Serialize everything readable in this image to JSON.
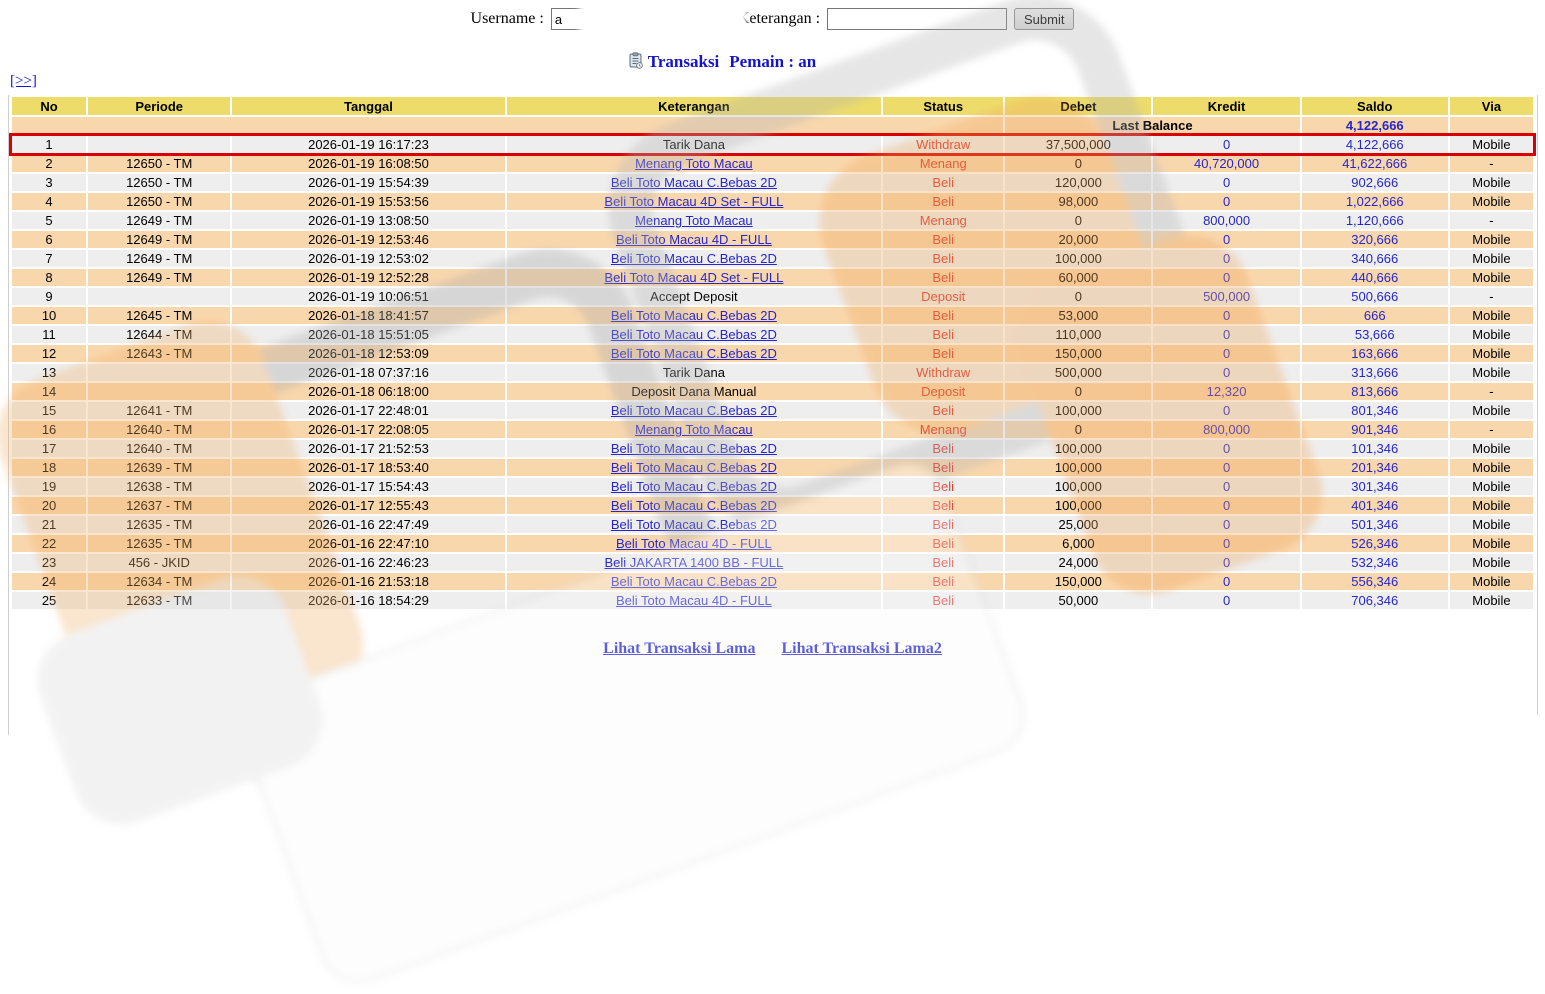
{
  "form": {
    "username_label": "Username :",
    "username_value": "a",
    "keterangan_label": "Keterangan :",
    "keterangan_value": "",
    "submit_label": "Submit"
  },
  "title": {
    "icon": "transaction-note-icon",
    "text": "Transaksi",
    "player_label": "Pemain : an"
  },
  "nav": {
    "more_link": "[>>]"
  },
  "table": {
    "columns": [
      "No",
      "Periode",
      "Tanggal",
      "Keterangan",
      "Status",
      "Debet",
      "Kredit",
      "Saldo",
      "Via"
    ],
    "last_balance": {
      "label": "Last Balance",
      "value": "4,122,666"
    },
    "rows": [
      {
        "no": "1",
        "periode": "",
        "tanggal": "2026-01-19 16:17:23",
        "keterangan": "Tarik Dana",
        "keterangan_is_link": false,
        "status": "Withdraw",
        "debet": "37,500,000",
        "kredit": "0",
        "saldo": "4,122,666",
        "via": "Mobile",
        "highlight": true
      },
      {
        "no": "2",
        "periode": "12650 - TM",
        "tanggal": "2026-01-19 16:08:50",
        "keterangan": "Menang Toto Macau",
        "keterangan_is_link": true,
        "status": "Menang",
        "debet": "0",
        "kredit": "40,720,000",
        "saldo": "41,622,666",
        "via": "-",
        "highlight": false
      },
      {
        "no": "3",
        "periode": "12650 - TM",
        "tanggal": "2026-01-19 15:54:39",
        "keterangan": "Beli Toto Macau C.Bebas 2D",
        "keterangan_is_link": true,
        "status": "Beli",
        "debet": "120,000",
        "kredit": "0",
        "saldo": "902,666",
        "via": "Mobile",
        "highlight": false
      },
      {
        "no": "4",
        "periode": "12650 - TM",
        "tanggal": "2026-01-19 15:53:56",
        "keterangan": "Beli Toto Macau 4D Set - FULL",
        "keterangan_is_link": true,
        "status": "Beli",
        "debet": "98,000",
        "kredit": "0",
        "saldo": "1,022,666",
        "via": "Mobile",
        "highlight": false
      },
      {
        "no": "5",
        "periode": "12649 - TM",
        "tanggal": "2026-01-19 13:08:50",
        "keterangan": "Menang Toto Macau",
        "keterangan_is_link": true,
        "status": "Menang",
        "debet": "0",
        "kredit": "800,000",
        "saldo": "1,120,666",
        "via": "-",
        "highlight": false
      },
      {
        "no": "6",
        "periode": "12649 - TM",
        "tanggal": "2026-01-19 12:53:46",
        "keterangan": "Beli Toto Macau 4D - FULL",
        "keterangan_is_link": true,
        "status": "Beli",
        "debet": "20,000",
        "kredit": "0",
        "saldo": "320,666",
        "via": "Mobile",
        "highlight": false
      },
      {
        "no": "7",
        "periode": "12649 - TM",
        "tanggal": "2026-01-19 12:53:02",
        "keterangan": "Beli Toto Macau C.Bebas 2D",
        "keterangan_is_link": true,
        "status": "Beli",
        "debet": "100,000",
        "kredit": "0",
        "saldo": "340,666",
        "via": "Mobile",
        "highlight": false
      },
      {
        "no": "8",
        "periode": "12649 - TM",
        "tanggal": "2026-01-19 12:52:28",
        "keterangan": "Beli Toto Macau 4D Set - FULL",
        "keterangan_is_link": true,
        "status": "Beli",
        "debet": "60,000",
        "kredit": "0",
        "saldo": "440,666",
        "via": "Mobile",
        "highlight": false
      },
      {
        "no": "9",
        "periode": "",
        "tanggal": "2026-01-19 10:06:51",
        "keterangan": "Accept Deposit",
        "keterangan_is_link": false,
        "status": "Deposit",
        "debet": "0",
        "kredit": "500,000",
        "saldo": "500,666",
        "via": "-",
        "highlight": false
      },
      {
        "no": "10",
        "periode": "12645 - TM",
        "tanggal": "2026-01-18 18:41:57",
        "keterangan": "Beli Toto Macau C.Bebas 2D",
        "keterangan_is_link": true,
        "status": "Beli",
        "debet": "53,000",
        "kredit": "0",
        "saldo": "666",
        "via": "Mobile",
        "highlight": false
      },
      {
        "no": "11",
        "periode": "12644 - TM",
        "tanggal": "2026-01-18 15:51:05",
        "keterangan": "Beli Toto Macau C.Bebas 2D",
        "keterangan_is_link": true,
        "status": "Beli",
        "debet": "110,000",
        "kredit": "0",
        "saldo": "53,666",
        "via": "Mobile",
        "highlight": false
      },
      {
        "no": "12",
        "periode": "12643 - TM",
        "tanggal": "2026-01-18 12:53:09",
        "keterangan": "Beli Toto Macau C.Bebas 2D",
        "keterangan_is_link": true,
        "status": "Beli",
        "debet": "150,000",
        "kredit": "0",
        "saldo": "163,666",
        "via": "Mobile",
        "highlight": false
      },
      {
        "no": "13",
        "periode": "",
        "tanggal": "2026-01-18 07:37:16",
        "keterangan": "Tarik Dana",
        "keterangan_is_link": false,
        "status": "Withdraw",
        "debet": "500,000",
        "kredit": "0",
        "saldo": "313,666",
        "via": "Mobile",
        "highlight": false
      },
      {
        "no": "14",
        "periode": "",
        "tanggal": "2026-01-18 06:18:00",
        "keterangan": "Deposit Dana Manual",
        "keterangan_is_link": false,
        "status": "Deposit",
        "debet": "0",
        "kredit": "12,320",
        "saldo": "813,666",
        "via": "-",
        "highlight": false
      },
      {
        "no": "15",
        "periode": "12641 - TM",
        "tanggal": "2026-01-17 22:48:01",
        "keterangan": "Beli Toto Macau C.Bebas 2D",
        "keterangan_is_link": true,
        "status": "Beli",
        "debet": "100,000",
        "kredit": "0",
        "saldo": "801,346",
        "via": "Mobile",
        "highlight": false
      },
      {
        "no": "16",
        "periode": "12640 - TM",
        "tanggal": "2026-01-17 22:08:05",
        "keterangan": "Menang Toto Macau",
        "keterangan_is_link": true,
        "status": "Menang",
        "debet": "0",
        "kredit": "800,000",
        "saldo": "901,346",
        "via": "-",
        "highlight": false
      },
      {
        "no": "17",
        "periode": "12640 - TM",
        "tanggal": "2026-01-17 21:52:53",
        "keterangan": "Beli Toto Macau C.Bebas 2D",
        "keterangan_is_link": true,
        "status": "Beli",
        "debet": "100,000",
        "kredit": "0",
        "saldo": "101,346",
        "via": "Mobile",
        "highlight": false
      },
      {
        "no": "18",
        "periode": "12639 - TM",
        "tanggal": "2026-01-17 18:53:40",
        "keterangan": "Beli Toto Macau C.Bebas 2D",
        "keterangan_is_link": true,
        "status": "Beli",
        "debet": "100,000",
        "kredit": "0",
        "saldo": "201,346",
        "via": "Mobile",
        "highlight": false
      },
      {
        "no": "19",
        "periode": "12638 - TM",
        "tanggal": "2026-01-17 15:54:43",
        "keterangan": "Beli Toto Macau C.Bebas 2D",
        "keterangan_is_link": true,
        "status": "Beli",
        "debet": "100,000",
        "kredit": "0",
        "saldo": "301,346",
        "via": "Mobile",
        "highlight": false
      },
      {
        "no": "20",
        "periode": "12637 - TM",
        "tanggal": "2026-01-17 12:55:43",
        "keterangan": "Beli Toto Macau C.Bebas 2D",
        "keterangan_is_link": true,
        "status": "Beli",
        "debet": "100,000",
        "kredit": "0",
        "saldo": "401,346",
        "via": "Mobile",
        "highlight": false
      },
      {
        "no": "21",
        "periode": "12635 - TM",
        "tanggal": "2026-01-16 22:47:49",
        "keterangan": "Beli Toto Macau C.Bebas 2D",
        "keterangan_is_link": true,
        "status": "Beli",
        "debet": "25,000",
        "kredit": "0",
        "saldo": "501,346",
        "via": "Mobile",
        "highlight": false
      },
      {
        "no": "22",
        "periode": "12635 - TM",
        "tanggal": "2026-01-16 22:47:10",
        "keterangan": "Beli Toto Macau 4D - FULL",
        "keterangan_is_link": true,
        "status": "Beli",
        "debet": "6,000",
        "kredit": "0",
        "saldo": "526,346",
        "via": "Mobile",
        "highlight": false
      },
      {
        "no": "23",
        "periode": "456 - JKID",
        "tanggal": "2026-01-16 22:46:23",
        "keterangan": "Beli JAKARTA 1400 BB - FULL",
        "keterangan_is_link": true,
        "status": "Beli",
        "debet": "24,000",
        "kredit": "0",
        "saldo": "532,346",
        "via": "Mobile",
        "highlight": false
      },
      {
        "no": "24",
        "periode": "12634 - TM",
        "tanggal": "2026-01-16 21:53:18",
        "keterangan": "Beli Toto Macau C.Bebas 2D",
        "keterangan_is_link": true,
        "status": "Beli",
        "debet": "150,000",
        "kredit": "0",
        "saldo": "556,346",
        "via": "Mobile",
        "highlight": false
      },
      {
        "no": "25",
        "periode": "12633 - TM",
        "tanggal": "2026-01-16 18:54:29",
        "keterangan": "Beli Toto Macau 4D - FULL",
        "keterangan_is_link": true,
        "status": "Beli",
        "debet": "50,000",
        "kredit": "0",
        "saldo": "706,346",
        "via": "Mobile",
        "highlight": false
      }
    ]
  },
  "footer": {
    "links": [
      "Lihat Transaksi Lama",
      "Lihat Transaksi Lama2"
    ]
  },
  "colors": {
    "header_bg": "#EDDC6A",
    "row_even": "#F9D7AD",
    "row_odd": "#EEEEEE",
    "last_balance_bg": "#F9D7AD",
    "status_red": "#E03A30",
    "num_blue": "#2626CC",
    "link_blue": "#2626CC",
    "title_blue": "#1414CC",
    "highlight_border": "#D90000"
  }
}
